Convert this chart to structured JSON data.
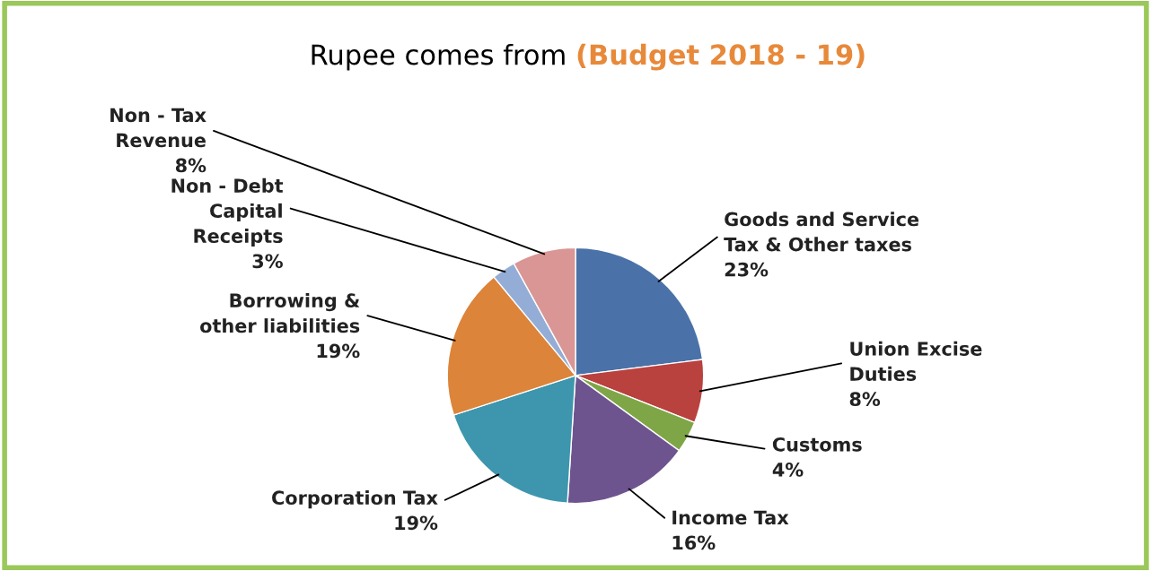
{
  "chart_data": {
    "type": "pie",
    "title": "Rupee comes from",
    "subtitle": "(Budget 2018 - 19)",
    "categories": [
      "Goods and Service\nTax & Other taxes",
      "Union Excise\nDuties",
      "Customs",
      "Income Tax",
      "Corporation Tax",
      "Borrowing &\nother liabilities",
      "Non - Debt\nCapital\nReceipts",
      "Non - Tax\nRevenue"
    ],
    "values": [
      23,
      8,
      4,
      16,
      19,
      19,
      3,
      8
    ],
    "value_labels": [
      "23%",
      "8%",
      "4%",
      "16%",
      "19%",
      "19%",
      "3%",
      "8%"
    ],
    "colors": [
      "#4a72a8",
      "#b9413e",
      "#7fa646",
      "#6e548f",
      "#3e96ae",
      "#dc843a",
      "#94add6",
      "#d99694"
    ],
    "legend": false
  }
}
